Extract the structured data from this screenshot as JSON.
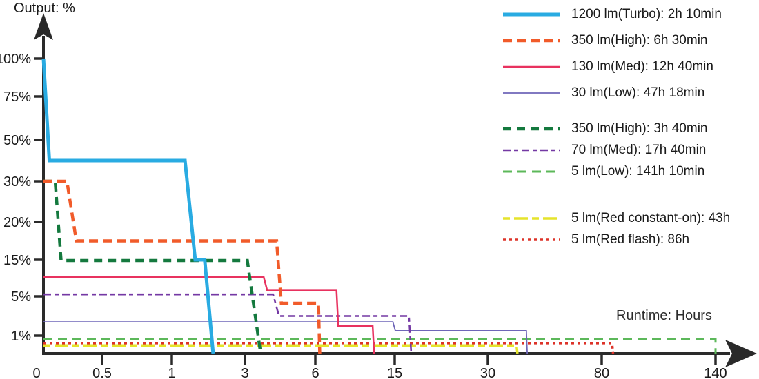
{
  "chart_data": {
    "type": "line",
    "title": "",
    "y_axis_label": "Output: %",
    "x_axis_label": "Runtime: Hours",
    "x_unit": "hours",
    "y_unit": "% output",
    "grid": false,
    "legend_position": "top-right",
    "y_ticks": [
      {
        "value": 100,
        "label": "100%"
      },
      {
        "value": 75,
        "label": "75%"
      },
      {
        "value": 50,
        "label": "50%"
      },
      {
        "value": 30,
        "label": "30%"
      },
      {
        "value": 20,
        "label": "20%"
      },
      {
        "value": 15,
        "label": "15%"
      },
      {
        "value": 5,
        "label": "5%"
      },
      {
        "value": 1,
        "label": "1%"
      }
    ],
    "x_ticks": [
      {
        "value": 0,
        "label": "0"
      },
      {
        "value": 0.5,
        "label": "0.5"
      },
      {
        "value": 1,
        "label": "1"
      },
      {
        "value": 3,
        "label": "3"
      },
      {
        "value": 6,
        "label": "6"
      },
      {
        "value": 15,
        "label": "15"
      },
      {
        "value": 30,
        "label": "30"
      },
      {
        "value": 80,
        "label": "80"
      },
      {
        "value": 140,
        "label": "140"
      }
    ],
    "x_scale_anchors": [
      [
        0,
        63
      ],
      [
        0.5,
        148
      ],
      [
        1,
        249
      ],
      [
        3,
        355
      ],
      [
        6,
        457
      ],
      [
        15,
        572
      ],
      [
        30,
        707
      ],
      [
        80,
        872
      ],
      [
        140,
        1037
      ]
    ],
    "y_scale_anchors": [
      [
        0,
        513
      ],
      [
        1,
        487
      ],
      [
        5,
        430
      ],
      [
        10,
        402
      ],
      [
        15,
        377
      ],
      [
        20,
        322
      ],
      [
        30,
        263
      ],
      [
        50,
        203
      ],
      [
        75,
        140
      ],
      [
        100,
        85
      ]
    ],
    "series": [
      {
        "id": "red_const",
        "label": "5 lm(Red constant-on): 43h",
        "color": "#E5E42B",
        "width": 3.5,
        "dash": "10 6 20 6",
        "points": [
          [
            0,
            0.45
          ],
          [
            42.6,
            0.45
          ],
          [
            43,
            0
          ]
        ]
      },
      {
        "id": "red_flash",
        "label": "5 lm(Red flash): 86h",
        "color": "#DD3329",
        "width": 3.5,
        "dash": "4 5",
        "points": [
          [
            0,
            0.58
          ],
          [
            85.5,
            0.58
          ],
          [
            86,
            0
          ]
        ]
      },
      {
        "id": "low5",
        "label": "5 lm(Low): 141h 10min",
        "color": "#5CB85A",
        "width": 3,
        "dash": "13 8",
        "points": [
          [
            0,
            0.8
          ],
          [
            140.8,
            0.8
          ],
          [
            141.17,
            0
          ]
        ]
      },
      {
        "id": "low30",
        "label": "30 lm(Low): 47h 18min",
        "color": "#6F66B8",
        "width": 1.8,
        "dash": "",
        "points": [
          [
            0,
            2.4
          ],
          [
            14.8,
            2.4
          ],
          [
            15.1,
            1.5
          ],
          [
            46.9,
            1.5
          ],
          [
            47.3,
            0
          ]
        ]
      },
      {
        "id": "med70",
        "label": "70 lm(Med): 17h 40min",
        "color": "#7439A4",
        "width": 2.6,
        "dash": "11 5 6 5",
        "points": [
          [
            0,
            5.5
          ],
          [
            4.2,
            5.5
          ],
          [
            4.45,
            3
          ],
          [
            17.3,
            3
          ],
          [
            17.67,
            0
          ]
        ]
      },
      {
        "id": "med130",
        "label": "130 lm(Med): 12h 40min",
        "color": "#E8325F",
        "width": 2.5,
        "dash": "",
        "points": [
          [
            0,
            10
          ],
          [
            3.8,
            10
          ],
          [
            3.95,
            6.5
          ],
          [
            8.4,
            6.5
          ],
          [
            8.6,
            2
          ],
          [
            12.5,
            2
          ],
          [
            12.67,
            0
          ]
        ]
      },
      {
        "id": "high350B",
        "label": "350 lm(High): 3h 40min",
        "color": "#14793E",
        "width": 4.5,
        "dash": "12 8",
        "points": [
          [
            0,
            30
          ],
          [
            0.1,
            30
          ],
          [
            0.15,
            14.8
          ],
          [
            3.1,
            14.8
          ],
          [
            3.67,
            0
          ]
        ]
      },
      {
        "id": "high350A",
        "label": "350 lm(High): 6h 30min",
        "color": "#F15B2A",
        "width": 4.5,
        "dash": "13 7",
        "points": [
          [
            0,
            30
          ],
          [
            0.2,
            30
          ],
          [
            0.28,
            17.5
          ],
          [
            4.35,
            17.5
          ],
          [
            4.55,
            4.3
          ],
          [
            6.35,
            4.3
          ],
          [
            6.5,
            0
          ]
        ]
      },
      {
        "id": "turbo1200",
        "label": "1200 lm(Turbo): 2h 10min",
        "color": "#29ABE2",
        "width": 5,
        "dash": "",
        "points": [
          [
            0,
            100
          ],
          [
            0.05,
            40
          ],
          [
            1.36,
            40
          ],
          [
            1.64,
            15
          ],
          [
            1.9,
            15
          ],
          [
            2.13,
            0
          ]
        ]
      }
    ],
    "legend_groups": [
      [
        "turbo1200",
        "high350A",
        "med130",
        "low30"
      ],
      [
        "high350B",
        "med70",
        "low5"
      ],
      [
        "red_const",
        "red_flash"
      ]
    ]
  },
  "axis_color": "#2a2a2a"
}
